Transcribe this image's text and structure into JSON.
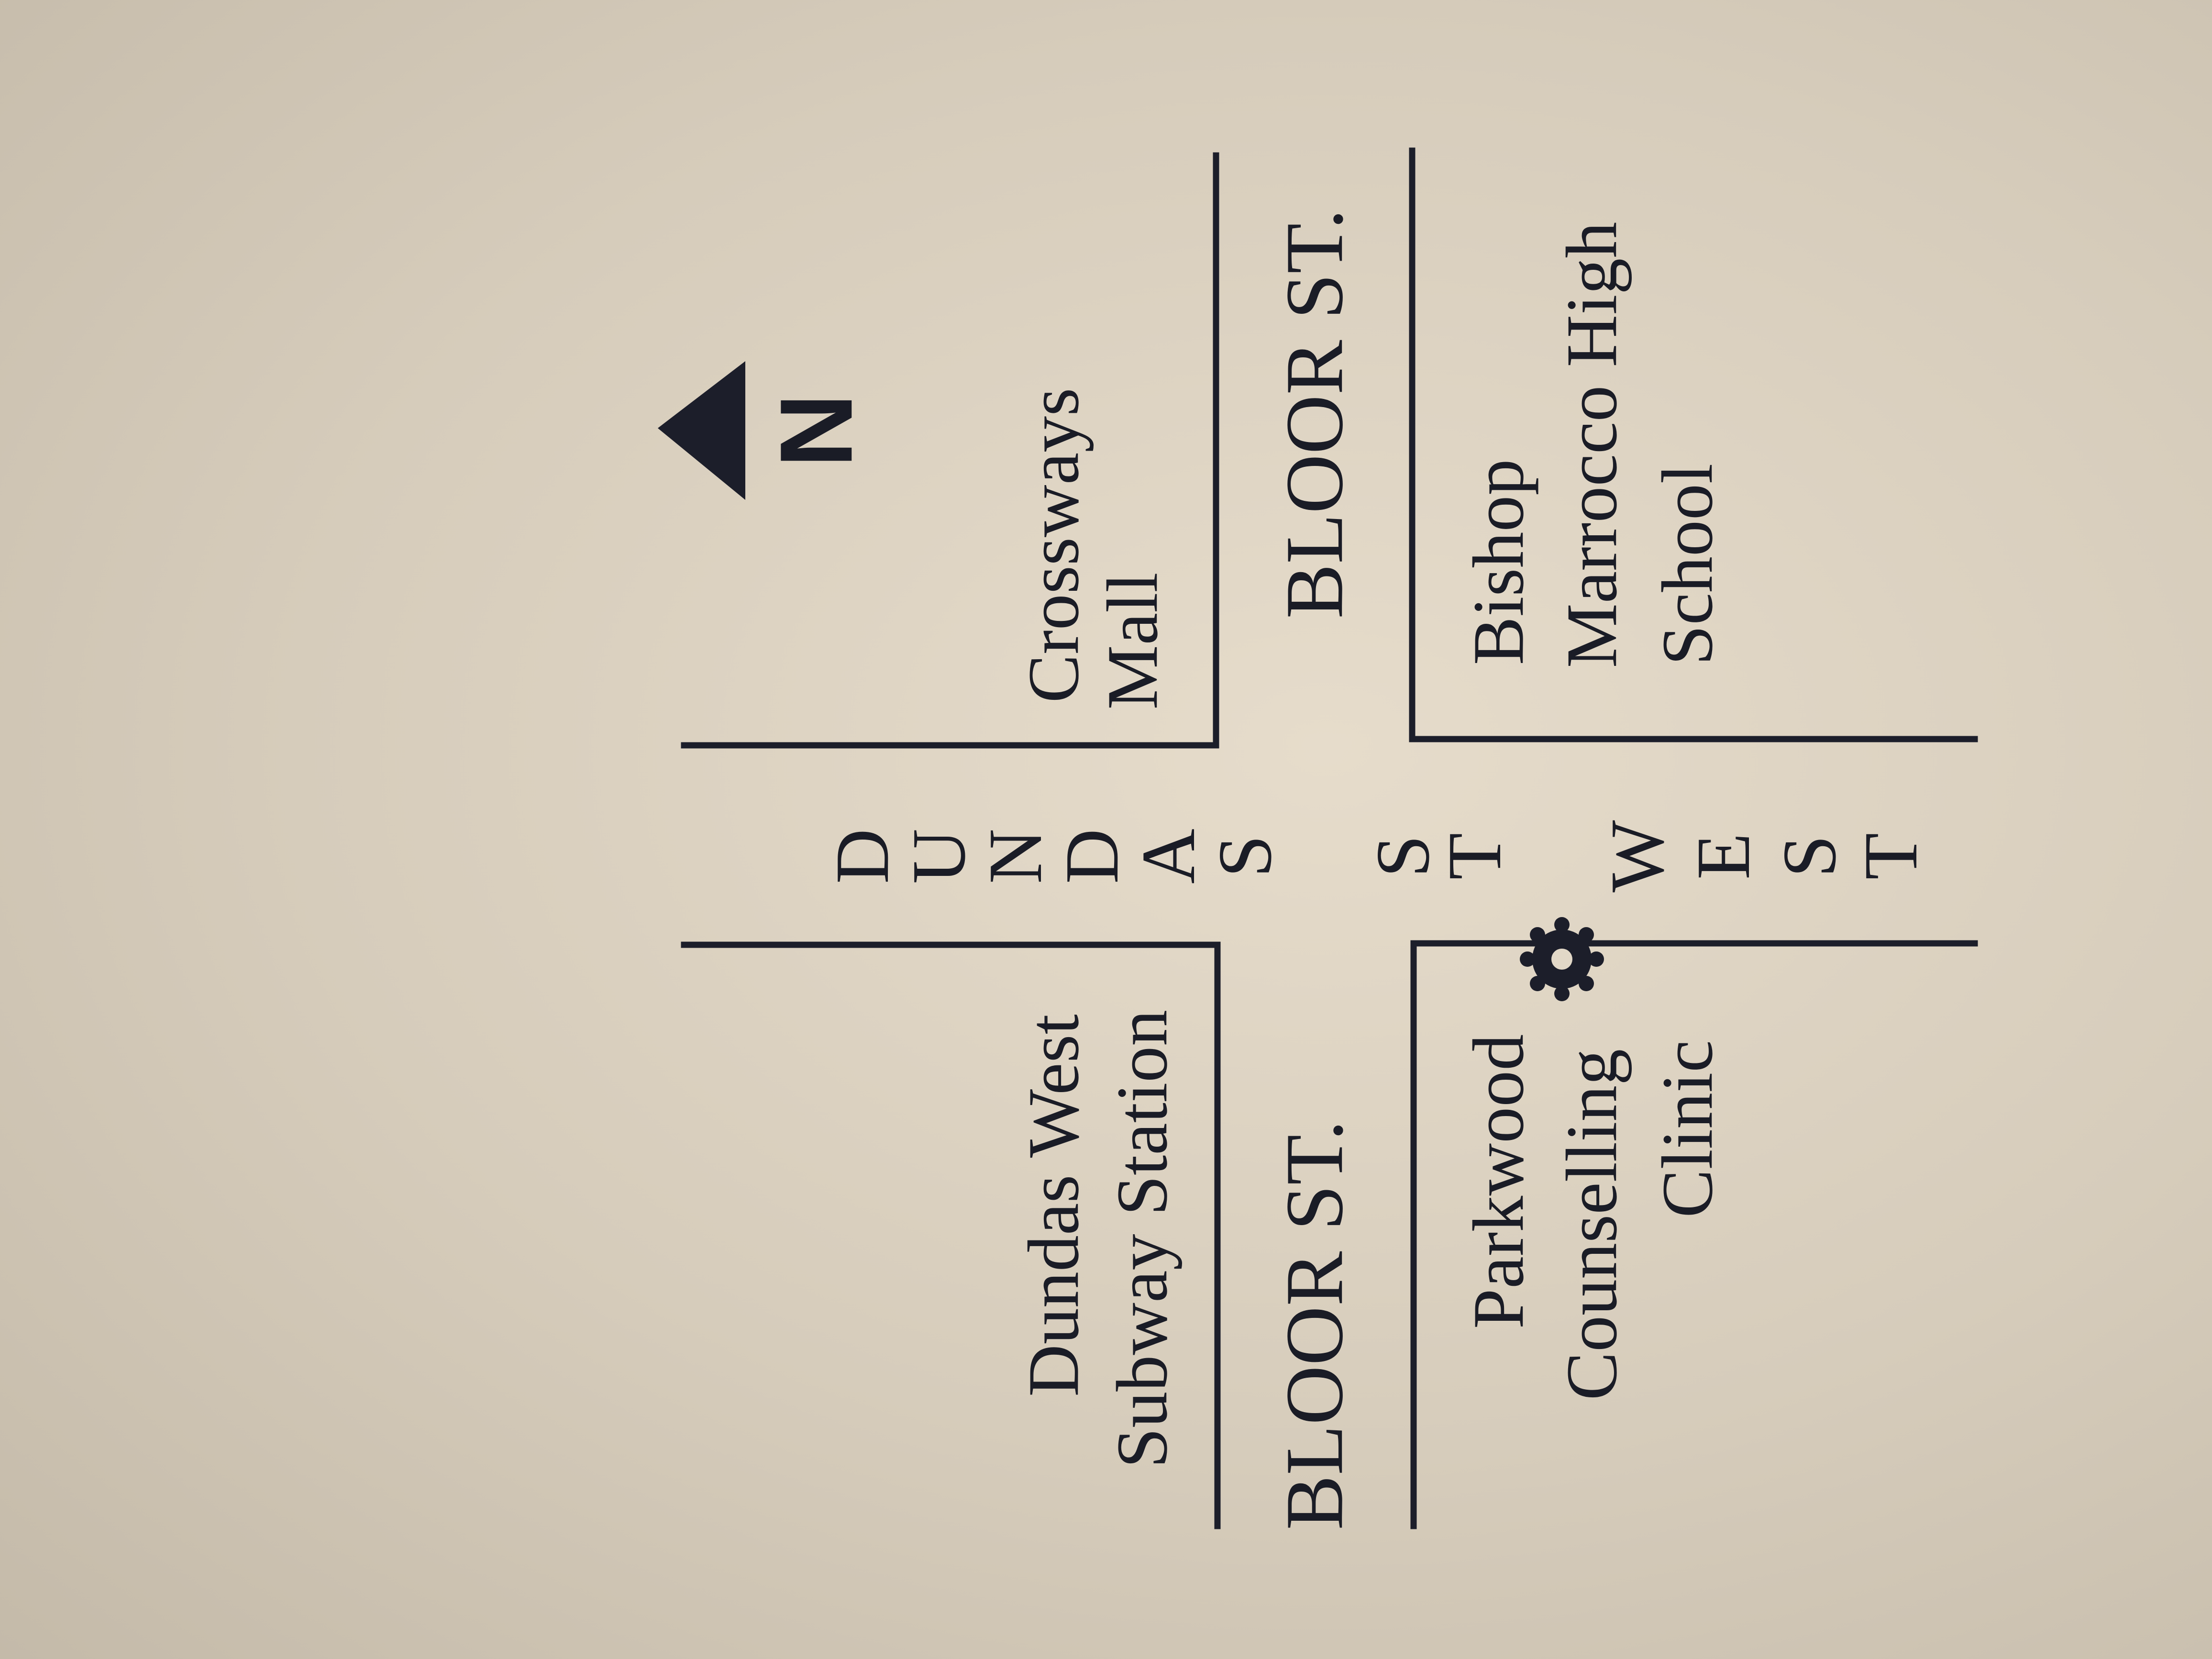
{
  "map": {
    "streets": {
      "bloor_east": "BLOOR ST.",
      "bloor_west": "BLOOR ST.",
      "dundas_word": [
        "D",
        "U",
        "N",
        "D",
        "A",
        "S"
      ],
      "st_word": [
        "S",
        "T"
      ],
      "west_word": [
        "W",
        "E",
        "S",
        "T"
      ]
    },
    "places": {
      "crossways": [
        "Crossways",
        "Mall"
      ],
      "bishop_marrocco": [
        "Bishop",
        "Marrocco High",
        "School"
      ],
      "dundas_west_station": [
        "Dundas West",
        "Subway Station"
      ],
      "parkwood_clinic": [
        "Parkwood",
        "Counselling",
        "Clinic"
      ]
    },
    "compass": {
      "letter": "N",
      "icon": "north-arrow-icon"
    },
    "marker": {
      "icon": "location-marker-icon"
    },
    "colors": {
      "paper": "#ddd3c2",
      "ink": "#1c1e2a"
    }
  }
}
